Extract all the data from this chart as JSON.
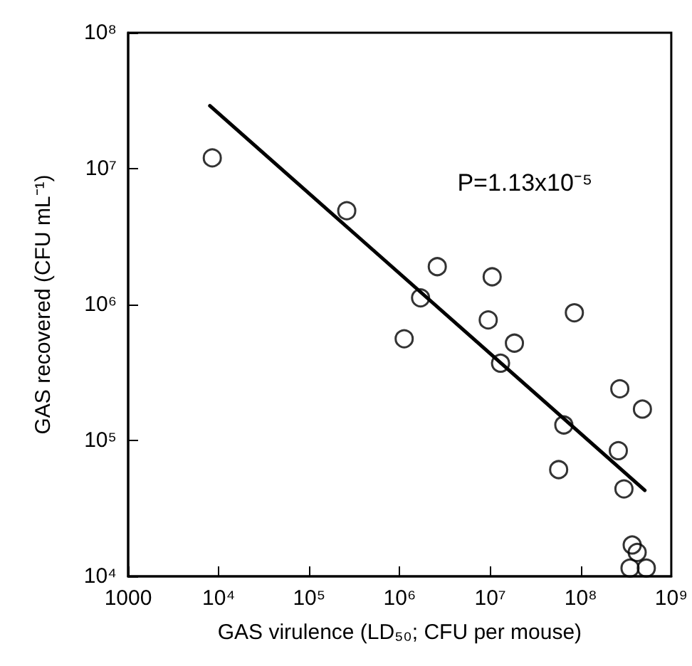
{
  "chart_data": {
    "type": "scatter",
    "xlabel": "GAS virulence (LD₅₀; CFU per mouse)",
    "ylabel": "GAS recovered (CFU mL⁻¹)",
    "log": "xy",
    "grid": false,
    "marker": "circle",
    "xlim": [
      1000,
      1000000000
    ],
    "ylim": [
      10000,
      100000000
    ],
    "xticks": [
      {
        "value": 1000,
        "label": "1000"
      },
      {
        "value": 10000,
        "label": "10⁴"
      },
      {
        "value": 100000,
        "label": "10⁵"
      },
      {
        "value": 1000000,
        "label": "10⁶"
      },
      {
        "value": 10000000,
        "label": "10⁷"
      },
      {
        "value": 100000000,
        "label": "10⁸"
      },
      {
        "value": 1000000000,
        "label": "10⁹"
      }
    ],
    "yticks": [
      {
        "value": 10000,
        "label": "10⁴"
      },
      {
        "value": 100000,
        "label": "10⁵"
      },
      {
        "value": 1000000,
        "label": "10⁶"
      },
      {
        "value": 10000000,
        "label": "10⁷"
      },
      {
        "value": 100000000,
        "label": "10⁸"
      }
    ],
    "annotations": [
      "P=1.13x10⁻⁵"
    ],
    "series": [
      {
        "color": "#000000",
        "x": [
          8500,
          260000,
          2600000,
          10500000,
          1700000,
          9500000,
          85000000,
          1120000,
          18500000,
          13000000,
          270000000,
          480000000,
          65000000,
          260000000,
          57000000,
          300000000,
          370000000,
          420000000,
          350000000,
          530000000
        ],
        "values": [
          12000000,
          4900000,
          1900000,
          1600000,
          1120000,
          770000,
          870000,
          560000,
          520000,
          370000,
          240000,
          170000,
          130000,
          84000,
          61000,
          44000,
          17000,
          15000,
          11500,
          11500
        ]
      },
      {
        "type": "line",
        "color": "#000000",
        "x": [
          8000,
          510000000
        ],
        "values": [
          29000000,
          43000
        ],
        "marker": "none"
      }
    ]
  }
}
